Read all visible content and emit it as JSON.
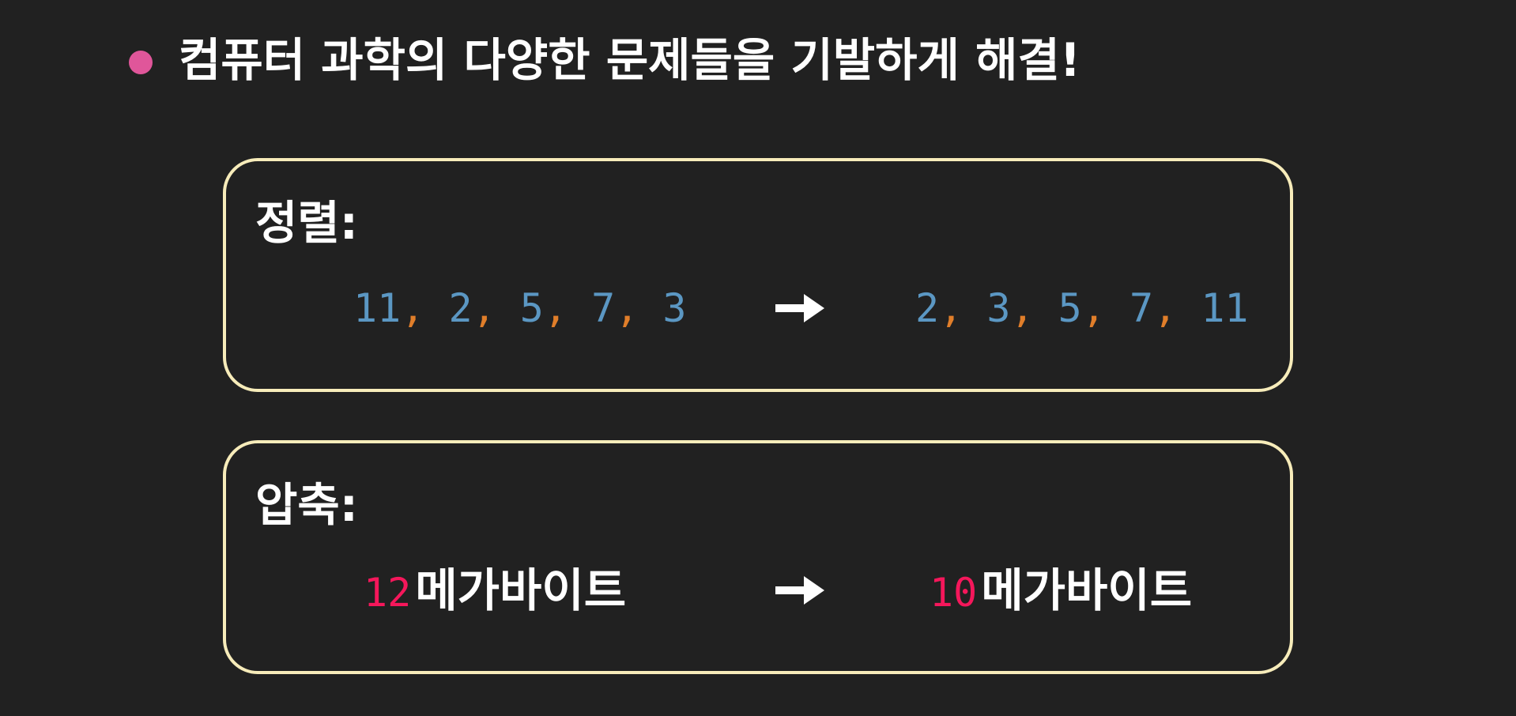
{
  "slide": {
    "title": "컴퓨터 과학의 다양한 문제들을 기발하게 해결!",
    "accent_colors": {
      "bullet": "#e0569a",
      "number": "#5b97c3",
      "comma": "#e07e2a",
      "highlight": "#f5175b",
      "box_border": "#f7ecba",
      "background": "#212121"
    }
  },
  "sorting": {
    "label": "정렬:",
    "input": [
      "11",
      "2",
      "5",
      "7",
      "3"
    ],
    "output": [
      "2",
      "3",
      "5",
      "7",
      "11"
    ],
    "separator": ",",
    "arrow_icon": "right-arrow-icon"
  },
  "compression": {
    "label": "압축:",
    "before_value": "12",
    "after_value": "10",
    "unit": "메가바이트",
    "arrow_icon": "right-arrow-icon"
  }
}
